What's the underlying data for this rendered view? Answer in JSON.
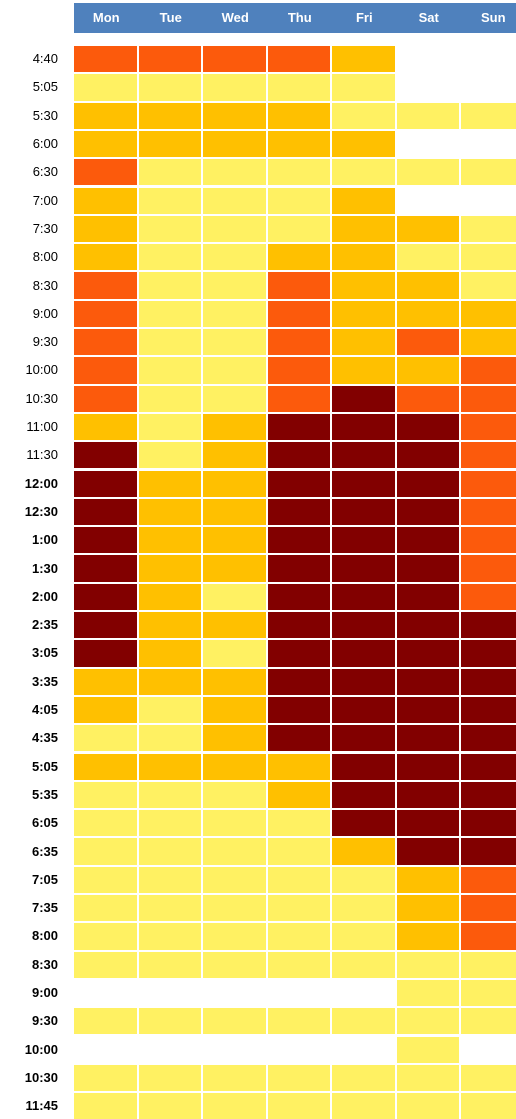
{
  "chart_data": {
    "type": "heatmap",
    "columns": [
      "Mon",
      "Tue",
      "Wed",
      "Thu",
      "Fri",
      "Sat",
      "Sun"
    ],
    "rows": [
      "4:40",
      "5:05",
      "5:30",
      "6:00",
      "6:30",
      "7:00",
      "7:30",
      "8:00",
      "8:30",
      "9:00",
      "9:30",
      "10:00",
      "10:30",
      "11:00",
      "11:30",
      "12:00",
      "12:30",
      "1:00",
      "1:30",
      "2:00",
      "2:35",
      "3:05",
      "3:35",
      "4:05",
      "4:35",
      "5:05",
      "5:35",
      "6:05",
      "6:35",
      "7:05",
      "7:35",
      "8:00",
      "8:30",
      "9:00",
      "9:30",
      "10:00",
      "10:30",
      "11:45"
    ],
    "bold_row_labels_from_index": 15,
    "levels": {
      "0": "#ffffff",
      "1": "#fff162",
      "2": "#ffc000",
      "3": "#fc5a0c",
      "4": "#820000"
    },
    "values": [
      [
        3,
        3,
        3,
        3,
        2,
        0,
        0
      ],
      [
        1,
        1,
        1,
        1,
        1,
        0,
        0
      ],
      [
        2,
        2,
        2,
        2,
        1,
        1,
        1
      ],
      [
        2,
        2,
        2,
        2,
        2,
        0,
        0
      ],
      [
        3,
        1,
        1,
        1,
        1,
        1,
        1
      ],
      [
        2,
        1,
        1,
        1,
        2,
        0,
        0
      ],
      [
        2,
        1,
        1,
        1,
        2,
        2,
        1
      ],
      [
        2,
        1,
        1,
        2,
        2,
        1,
        1
      ],
      [
        3,
        1,
        1,
        3,
        2,
        2,
        1
      ],
      [
        3,
        1,
        1,
        3,
        2,
        2,
        2
      ],
      [
        3,
        1,
        1,
        3,
        2,
        3,
        2
      ],
      [
        3,
        1,
        1,
        3,
        2,
        2,
        3
      ],
      [
        3,
        1,
        1,
        3,
        4,
        3,
        3
      ],
      [
        2,
        1,
        2,
        4,
        4,
        4,
        3
      ],
      [
        4,
        1,
        2,
        4,
        4,
        4,
        3
      ],
      [
        4,
        2,
        2,
        4,
        4,
        4,
        3
      ],
      [
        4,
        2,
        2,
        4,
        4,
        4,
        3
      ],
      [
        4,
        2,
        2,
        4,
        4,
        4,
        3
      ],
      [
        4,
        2,
        2,
        4,
        4,
        4,
        3
      ],
      [
        4,
        2,
        1,
        4,
        4,
        4,
        3
      ],
      [
        4,
        2,
        2,
        4,
        4,
        4,
        4
      ],
      [
        4,
        2,
        1,
        4,
        4,
        4,
        4
      ],
      [
        2,
        2,
        2,
        4,
        4,
        4,
        4
      ],
      [
        2,
        1,
        2,
        4,
        4,
        4,
        4
      ],
      [
        1,
        1,
        2,
        4,
        4,
        4,
        4
      ],
      [
        2,
        2,
        2,
        2,
        4,
        4,
        4
      ],
      [
        1,
        1,
        1,
        2,
        4,
        4,
        4
      ],
      [
        1,
        1,
        1,
        1,
        4,
        4,
        4
      ],
      [
        1,
        1,
        1,
        1,
        2,
        4,
        4
      ],
      [
        1,
        1,
        1,
        1,
        1,
        2,
        3
      ],
      [
        1,
        1,
        1,
        1,
        1,
        2,
        3
      ],
      [
        1,
        1,
        1,
        1,
        1,
        2,
        3
      ],
      [
        1,
        1,
        1,
        1,
        1,
        1,
        1
      ],
      [
        0,
        0,
        0,
        0,
        0,
        1,
        1
      ],
      [
        1,
        1,
        1,
        1,
        1,
        1,
        1
      ],
      [
        0,
        0,
        0,
        0,
        0,
        1,
        0
      ],
      [
        1,
        1,
        1,
        1,
        1,
        1,
        1
      ],
      [
        1,
        1,
        1,
        1,
        1,
        1,
        1
      ]
    ]
  }
}
